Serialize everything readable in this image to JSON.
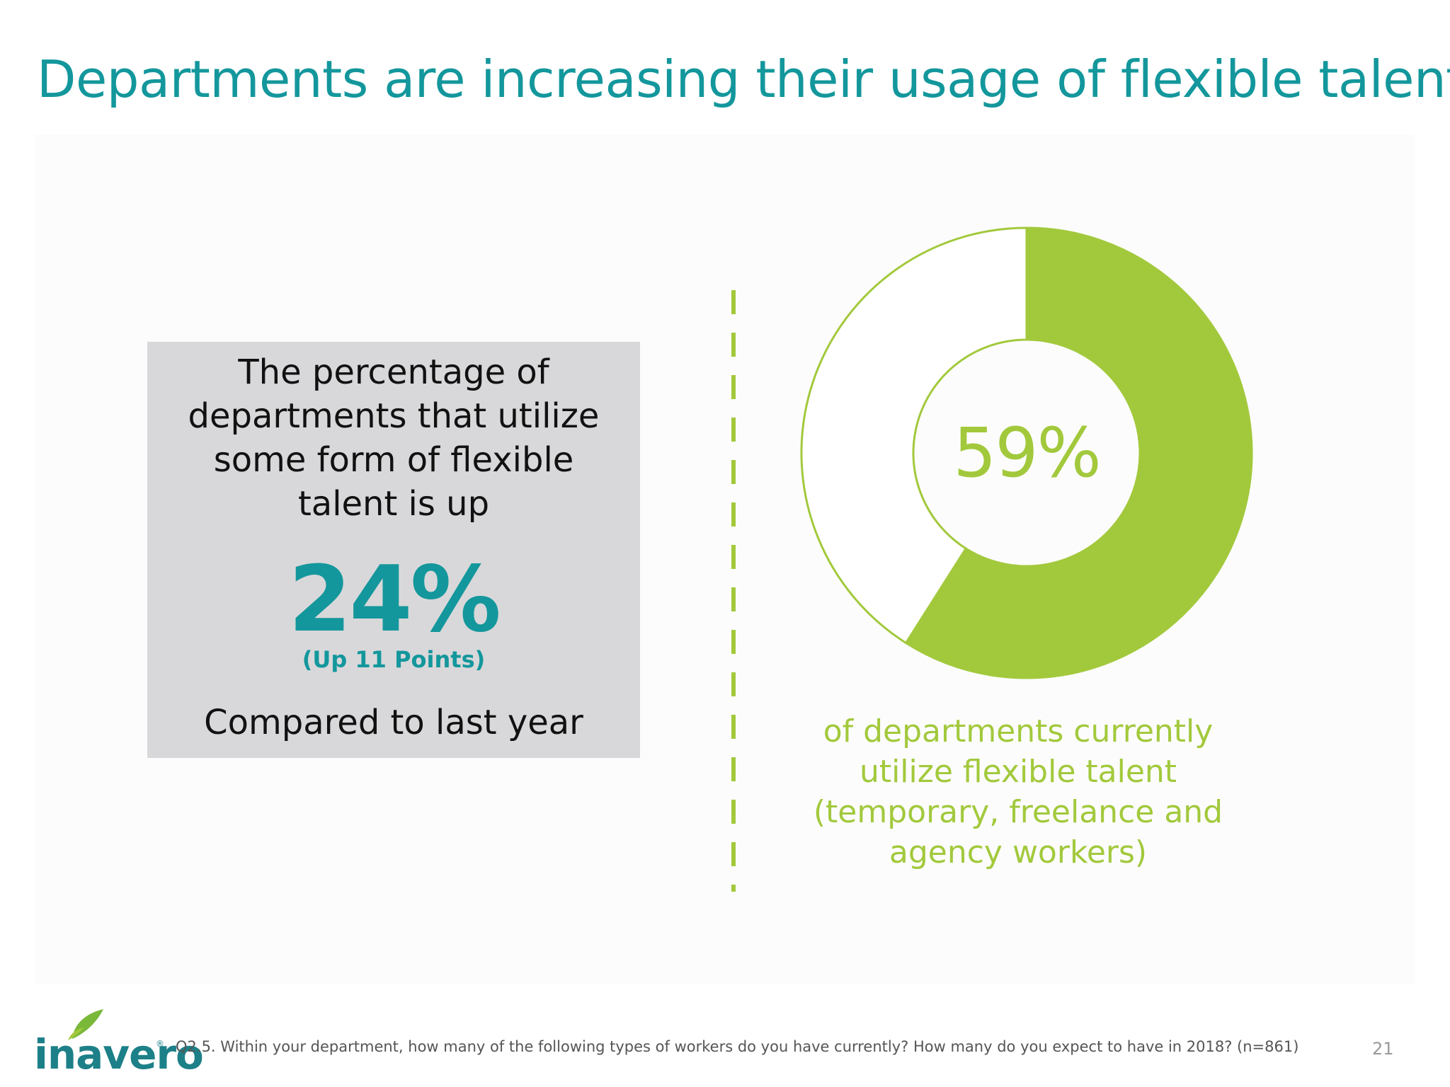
{
  "slide": {
    "title": "Departments are increasing their usage of flexible talent",
    "page_number": "21"
  },
  "stat_box": {
    "description": "The percentage of departments that utilize some form of flexible talent is up",
    "value": "24%",
    "delta": "(Up 11 Points)",
    "comparison": "Compared to last year"
  },
  "chart_data": {
    "type": "pie",
    "variant": "donut",
    "categories": [
      "",
      ""
    ],
    "values": [
      59,
      41
    ],
    "center_label": "59%",
    "caption": "of departments currently utilize flexible talent (temporary, freelance and agency workers)",
    "colors": {
      "filled": "#a2c93c",
      "remainder": "#ffffff",
      "outline": "#a2c93c"
    }
  },
  "footer": {
    "logo_text": "inavero",
    "logo_registered": "®",
    "footnote": "Q2.5. Within your department, how many of the following types of workers do you have currently? How many do you expect to have in 2018? (n=861)"
  },
  "colors": {
    "title": "#13979c",
    "accent_teal": "#13979c",
    "accent_green": "#a2c93c",
    "box_bg": "#d8d8da"
  }
}
